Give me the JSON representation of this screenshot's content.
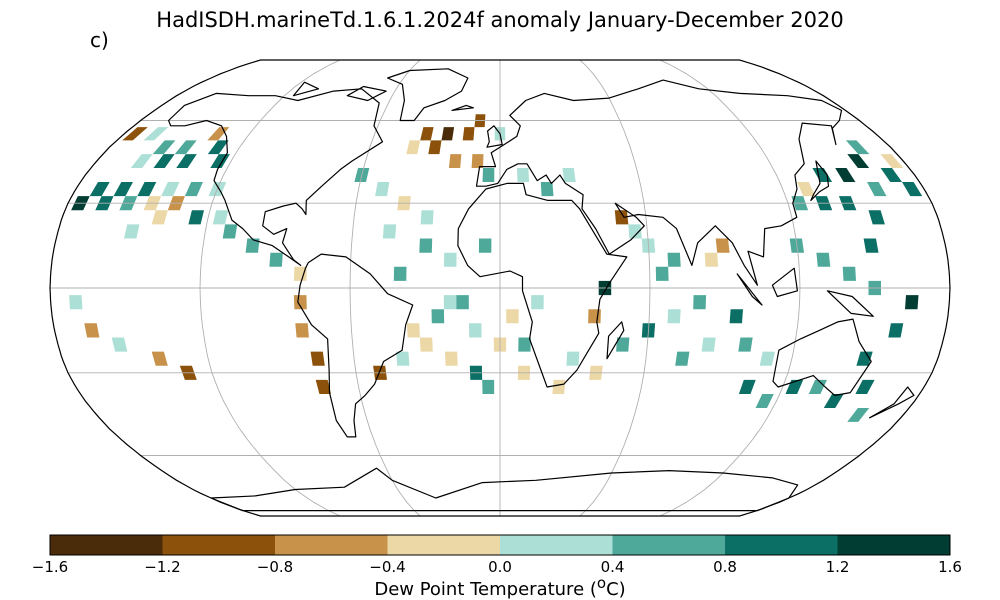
{
  "title": "HadISDH.marineTd.1.6.1.2024f anomaly January-December 2020",
  "panel_label": "c)",
  "colorbar": {
    "label": "Dew Point Temperature (",
    "label_sup": "o",
    "label_end": "C)",
    "ticks": [
      "−1.6",
      "−1.2",
      "−0.8",
      "−0.4",
      "0.0",
      "0.4",
      "0.8",
      "1.2",
      "1.6"
    ],
    "colors": [
      "#4a2c0a",
      "#8c510a",
      "#c8924a",
      "#ecd8a6",
      "#acdfd5",
      "#4fa99b",
      "#0b6f65",
      "#013d32"
    ]
  },
  "colors": {
    "land_outline": "#000000",
    "grid": "#b0b0b0",
    "background": "#ffffff"
  },
  "map_data": {
    "projection": "Robinson",
    "grid_step_lon": 60,
    "grid_step_lat": 30,
    "cells": [
      [
        -175,
        55,
        1
      ],
      [
        -165,
        55,
        4
      ],
      [
        -155,
        50,
        5
      ],
      [
        -145,
        50,
        5
      ],
      [
        -135,
        55,
        2
      ],
      [
        -130,
        50,
        6
      ],
      [
        -125,
        45,
        6
      ],
      [
        -160,
        45,
        4
      ],
      [
        -150,
        45,
        6
      ],
      [
        -140,
        45,
        6
      ],
      [
        -170,
        35,
        6
      ],
      [
        -160,
        35,
        6
      ],
      [
        -150,
        35,
        6
      ],
      [
        -140,
        35,
        4
      ],
      [
        -130,
        35,
        5
      ],
      [
        -120,
        35,
        4
      ],
      [
        -175,
        30,
        7
      ],
      [
        -165,
        30,
        6
      ],
      [
        -155,
        30,
        5
      ],
      [
        -145,
        30,
        3
      ],
      [
        -135,
        30,
        2
      ],
      [
        -125,
        25,
        6
      ],
      [
        -115,
        25,
        4
      ],
      [
        -140,
        25,
        3
      ],
      [
        -150,
        20,
        4
      ],
      [
        -110,
        20,
        5
      ],
      [
        -100,
        15,
        5
      ],
      [
        -90,
        10,
        5
      ],
      [
        -80,
        5,
        3
      ],
      [
        -80,
        -5,
        2
      ],
      [
        -80,
        -15,
        2
      ],
      [
        -75,
        -25,
        1
      ],
      [
        -75,
        -35,
        1
      ],
      [
        -50,
        -30,
        1
      ],
      [
        -40,
        -25,
        4
      ],
      [
        -30,
        -20,
        3
      ],
      [
        -60,
        40,
        5
      ],
      [
        -50,
        35,
        4
      ],
      [
        -40,
        30,
        3
      ],
      [
        -30,
        25,
        4
      ],
      [
        -30,
        15,
        5
      ],
      [
        -20,
        10,
        4
      ],
      [
        -30,
        50,
        1
      ],
      [
        -25,
        55,
        0
      ],
      [
        -15,
        55,
        1
      ],
      [
        -20,
        45,
        2
      ],
      [
        -10,
        45,
        2
      ],
      [
        -40,
        50,
        3
      ],
      [
        -35,
        55,
        1
      ],
      [
        -10,
        60,
        1
      ],
      [
        0,
        55,
        4
      ],
      [
        -45,
        20,
        4
      ],
      [
        -40,
        5,
        5
      ],
      [
        -20,
        -5,
        4
      ],
      [
        -10,
        -15,
        4
      ],
      [
        0,
        -20,
        3
      ],
      [
        10,
        -30,
        3
      ],
      [
        -5,
        -35,
        5
      ],
      [
        15,
        -5,
        4
      ],
      [
        5,
        -10,
        3
      ],
      [
        -170,
        -5,
        4
      ],
      [
        -165,
        -15,
        2
      ],
      [
        -155,
        -20,
        4
      ],
      [
        -140,
        -25,
        2
      ],
      [
        -130,
        -30,
        1
      ],
      [
        60,
        15,
        4
      ],
      [
        70,
        10,
        5
      ],
      [
        65,
        5,
        5
      ],
      [
        85,
        10,
        3
      ],
      [
        90,
        15,
        2
      ],
      [
        80,
        -5,
        5
      ],
      [
        70,
        -10,
        4
      ],
      [
        60,
        -15,
        6
      ],
      [
        50,
        -20,
        5
      ],
      [
        40,
        -30,
        3
      ],
      [
        75,
        -25,
        5
      ],
      [
        85,
        -20,
        4
      ],
      [
        95,
        -10,
        6
      ],
      [
        100,
        -20,
        5
      ],
      [
        110,
        -25,
        4
      ],
      [
        105,
        -35,
        6
      ],
      [
        115,
        -40,
        5
      ],
      [
        125,
        -35,
        6
      ],
      [
        135,
        -35,
        5
      ],
      [
        145,
        -40,
        6
      ],
      [
        155,
        -35,
        6
      ],
      [
        160,
        -45,
        5
      ],
      [
        150,
        -25,
        6
      ],
      [
        160,
        -15,
        6
      ],
      [
        165,
        -5,
        7
      ],
      [
        150,
        0,
        5
      ],
      [
        140,
        5,
        5
      ],
      [
        130,
        10,
        5
      ],
      [
        120,
        15,
        5
      ],
      [
        150,
        15,
        6
      ],
      [
        155,
        25,
        6
      ],
      [
        145,
        30,
        6
      ],
      [
        135,
        30,
        6
      ],
      [
        150,
        40,
        7
      ],
      [
        160,
        45,
        7
      ],
      [
        170,
        40,
        6
      ],
      [
        175,
        35,
        6
      ],
      [
        160,
        35,
        5
      ],
      [
        140,
        40,
        6
      ],
      [
        130,
        35,
        3
      ],
      [
        125,
        30,
        5
      ],
      [
        165,
        50,
        5
      ],
      [
        175,
        45,
        3
      ],
      [
        42,
        0,
        7
      ],
      [
        38,
        -10,
        2
      ],
      [
        -6,
        15,
        5
      ],
      [
        20,
        35,
        5
      ],
      [
        30,
        40,
        4
      ],
      [
        10,
        40,
        4
      ],
      [
        -5,
        40,
        5
      ],
      [
        50,
        25,
        1
      ],
      [
        55,
        20,
        4
      ],
      [
        -15,
        -5,
        5
      ],
      [
        -25,
        -10,
        5
      ],
      [
        -35,
        -15,
        3
      ],
      [
        -20,
        -25,
        3
      ],
      [
        -10,
        -30,
        6
      ],
      [
        10,
        -20,
        5
      ],
      [
        25,
        -35,
        3
      ],
      [
        30,
        -25,
        4
      ]
    ]
  }
}
